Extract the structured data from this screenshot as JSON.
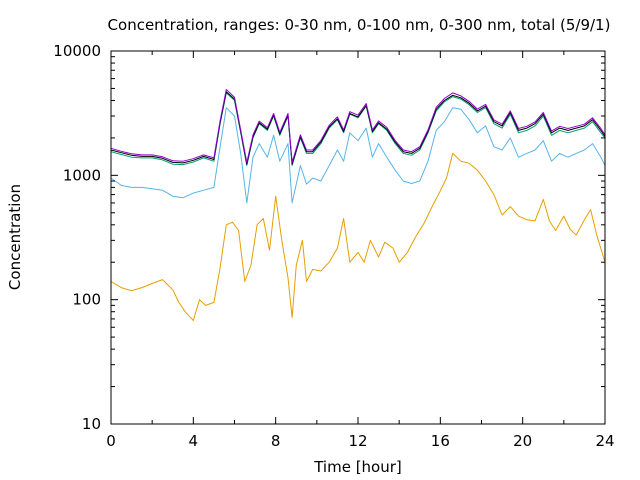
{
  "chart_data": {
    "type": "line",
    "title": "Concentration, ranges: 0-30 nm, 0-100 nm, 0-300 nm, total (5/9/1)",
    "xlabel": "Time [hour]",
    "ylabel": "Concentration",
    "xlim": [
      0,
      24
    ],
    "ylim": [
      10,
      10000
    ],
    "yscale": "log",
    "grid": false,
    "legend": "none",
    "x_ticks": [
      0,
      4,
      8,
      12,
      16,
      20,
      24
    ],
    "x_tick_labels": [
      "0",
      "4",
      "8",
      "12",
      "16",
      "20",
      "24"
    ],
    "y_ticks": [
      10,
      100,
      1000,
      10000
    ],
    "y_tick_labels": [
      "10",
      "100",
      "1000",
      "10000"
    ],
    "series": [
      {
        "color": "#e69f00",
        "points": [
          [
            0,
            140
          ],
          [
            0.5,
            125
          ],
          [
            1,
            118
          ],
          [
            1.5,
            125
          ],
          [
            2,
            135
          ],
          [
            2.5,
            145
          ],
          [
            3,
            120
          ],
          [
            3.3,
            95
          ],
          [
            3.6,
            80
          ],
          [
            4,
            68
          ],
          [
            4.3,
            100
          ],
          [
            4.6,
            90
          ],
          [
            5,
            95
          ],
          [
            5.3,
            180
          ],
          [
            5.6,
            400
          ],
          [
            5.9,
            420
          ],
          [
            6.2,
            360
          ],
          [
            6.5,
            140
          ],
          [
            6.8,
            190
          ],
          [
            7.1,
            400
          ],
          [
            7.4,
            450
          ],
          [
            7.7,
            250
          ],
          [
            8,
            680
          ],
          [
            8.3,
            300
          ],
          [
            8.6,
            150
          ],
          [
            8.8,
            72
          ],
          [
            9,
            190
          ],
          [
            9.3,
            300
          ],
          [
            9.5,
            140
          ],
          [
            9.8,
            175
          ],
          [
            10.2,
            170
          ],
          [
            10.6,
            200
          ],
          [
            11,
            260
          ],
          [
            11.3,
            450
          ],
          [
            11.6,
            200
          ],
          [
            12,
            240
          ],
          [
            12.3,
            200
          ],
          [
            12.6,
            300
          ],
          [
            13,
            220
          ],
          [
            13.3,
            290
          ],
          [
            13.7,
            260
          ],
          [
            14,
            200
          ],
          [
            14.4,
            240
          ],
          [
            14.8,
            320
          ],
          [
            15.2,
            410
          ],
          [
            15.6,
            560
          ],
          [
            16,
            750
          ],
          [
            16.3,
            950
          ],
          [
            16.6,
            1500
          ],
          [
            17,
            1300
          ],
          [
            17.4,
            1250
          ],
          [
            17.8,
            1100
          ],
          [
            18.2,
            900
          ],
          [
            18.6,
            700
          ],
          [
            19,
            480
          ],
          [
            19.4,
            560
          ],
          [
            19.8,
            470
          ],
          [
            20.2,
            440
          ],
          [
            20.6,
            430
          ],
          [
            21,
            640
          ],
          [
            21.3,
            430
          ],
          [
            21.6,
            360
          ],
          [
            22,
            470
          ],
          [
            22.3,
            370
          ],
          [
            22.6,
            330
          ],
          [
            23,
            440
          ],
          [
            23.3,
            530
          ],
          [
            23.6,
            330
          ],
          [
            24,
            200
          ]
        ]
      },
      {
        "color": "#56b4e9",
        "points": [
          [
            0,
            950
          ],
          [
            0.5,
            830
          ],
          [
            1,
            800
          ],
          [
            1.5,
            800
          ],
          [
            2,
            780
          ],
          [
            2.5,
            760
          ],
          [
            3,
            680
          ],
          [
            3.5,
            660
          ],
          [
            4,
            720
          ],
          [
            4.5,
            760
          ],
          [
            5,
            800
          ],
          [
            5.3,
            1700
          ],
          [
            5.6,
            3500
          ],
          [
            6,
            3000
          ],
          [
            6.3,
            1500
          ],
          [
            6.6,
            600
          ],
          [
            6.9,
            1400
          ],
          [
            7.2,
            1800
          ],
          [
            7.6,
            1400
          ],
          [
            7.9,
            2100
          ],
          [
            8.2,
            1300
          ],
          [
            8.6,
            1800
          ],
          [
            8.8,
            600
          ],
          [
            9.2,
            1200
          ],
          [
            9.5,
            850
          ],
          [
            9.8,
            950
          ],
          [
            10.2,
            900
          ],
          [
            10.6,
            1200
          ],
          [
            11,
            1600
          ],
          [
            11.3,
            1300
          ],
          [
            11.6,
            2200
          ],
          [
            12,
            1900
          ],
          [
            12.4,
            2400
          ],
          [
            12.7,
            1400
          ],
          [
            13,
            1800
          ],
          [
            13.4,
            1400
          ],
          [
            13.8,
            1100
          ],
          [
            14.2,
            900
          ],
          [
            14.6,
            860
          ],
          [
            15,
            900
          ],
          [
            15.4,
            1300
          ],
          [
            15.8,
            2300
          ],
          [
            16.2,
            2700
          ],
          [
            16.6,
            3500
          ],
          [
            17,
            3400
          ],
          [
            17.4,
            2800
          ],
          [
            17.8,
            2200
          ],
          [
            18.2,
            2500
          ],
          [
            18.6,
            1700
          ],
          [
            19,
            1600
          ],
          [
            19.4,
            2000
          ],
          [
            19.8,
            1400
          ],
          [
            20.2,
            1500
          ],
          [
            20.6,
            1600
          ],
          [
            21,
            1900
          ],
          [
            21.4,
            1300
          ],
          [
            21.8,
            1500
          ],
          [
            22.2,
            1400
          ],
          [
            22.6,
            1500
          ],
          [
            23,
            1600
          ],
          [
            23.4,
            1800
          ],
          [
            23.8,
            1400
          ],
          [
            24,
            1200
          ]
        ]
      },
      {
        "color": "#009e73",
        "points": [
          [
            0,
            1550
          ],
          [
            0.5,
            1470
          ],
          [
            1,
            1400
          ],
          [
            1.5,
            1380
          ],
          [
            2,
            1380
          ],
          [
            2.5,
            1330
          ],
          [
            3,
            1230
          ],
          [
            3.5,
            1220
          ],
          [
            4,
            1280
          ],
          [
            4.5,
            1380
          ],
          [
            5,
            1300
          ],
          [
            5.3,
            2600
          ],
          [
            5.6,
            4600
          ],
          [
            6,
            4000
          ],
          [
            6.3,
            2200
          ],
          [
            6.6,
            1200
          ],
          [
            6.9,
            2000
          ],
          [
            7.2,
            2600
          ],
          [
            7.6,
            2300
          ],
          [
            7.9,
            3000
          ],
          [
            8.2,
            2100
          ],
          [
            8.6,
            3000
          ],
          [
            8.8,
            1200
          ],
          [
            9.2,
            2000
          ],
          [
            9.5,
            1500
          ],
          [
            9.8,
            1500
          ],
          [
            10.2,
            1800
          ],
          [
            10.6,
            2400
          ],
          [
            11,
            2800
          ],
          [
            11.3,
            2200
          ],
          [
            11.6,
            3100
          ],
          [
            12,
            2900
          ],
          [
            12.4,
            3600
          ],
          [
            12.7,
            2200
          ],
          [
            13,
            2600
          ],
          [
            13.4,
            2300
          ],
          [
            13.8,
            1800
          ],
          [
            14.2,
            1500
          ],
          [
            14.6,
            1450
          ],
          [
            15,
            1600
          ],
          [
            15.4,
            2200
          ],
          [
            15.8,
            3300
          ],
          [
            16.2,
            3900
          ],
          [
            16.6,
            4300
          ],
          [
            17,
            4100
          ],
          [
            17.4,
            3700
          ],
          [
            17.8,
            3200
          ],
          [
            18.2,
            3500
          ],
          [
            18.6,
            2600
          ],
          [
            19,
            2400
          ],
          [
            19.4,
            3100
          ],
          [
            19.8,
            2200
          ],
          [
            20.2,
            2300
          ],
          [
            20.6,
            2500
          ],
          [
            21,
            3000
          ],
          [
            21.4,
            2100
          ],
          [
            21.8,
            2300
          ],
          [
            22.2,
            2200
          ],
          [
            22.6,
            2300
          ],
          [
            23,
            2400
          ],
          [
            23.4,
            2700
          ],
          [
            23.8,
            2200
          ],
          [
            24,
            2000
          ]
        ]
      },
      {
        "color": "#000000",
        "points": [
          [
            0,
            1600
          ],
          [
            0.5,
            1520
          ],
          [
            1,
            1450
          ],
          [
            1.5,
            1420
          ],
          [
            2,
            1420
          ],
          [
            2.5,
            1370
          ],
          [
            3,
            1270
          ],
          [
            3.5,
            1260
          ],
          [
            4,
            1320
          ],
          [
            4.5,
            1420
          ],
          [
            5,
            1340
          ],
          [
            5.3,
            2650
          ],
          [
            5.6,
            4700
          ],
          [
            6,
            4100
          ],
          [
            6.3,
            2250
          ],
          [
            6.6,
            1230
          ],
          [
            6.9,
            2050
          ],
          [
            7.2,
            2650
          ],
          [
            7.6,
            2350
          ],
          [
            7.9,
            3050
          ],
          [
            8.2,
            2150
          ],
          [
            8.6,
            3050
          ],
          [
            8.8,
            1230
          ],
          [
            9.2,
            2050
          ],
          [
            9.5,
            1550
          ],
          [
            9.8,
            1550
          ],
          [
            10.2,
            1850
          ],
          [
            10.6,
            2450
          ],
          [
            11,
            2850
          ],
          [
            11.3,
            2250
          ],
          [
            11.6,
            3150
          ],
          [
            12,
            2950
          ],
          [
            12.4,
            3650
          ],
          [
            12.7,
            2250
          ],
          [
            13,
            2650
          ],
          [
            13.4,
            2350
          ],
          [
            13.8,
            1850
          ],
          [
            14.2,
            1550
          ],
          [
            14.6,
            1500
          ],
          [
            15,
            1650
          ],
          [
            15.4,
            2250
          ],
          [
            15.8,
            3400
          ],
          [
            16.2,
            4000
          ],
          [
            16.6,
            4400
          ],
          [
            17,
            4200
          ],
          [
            17.4,
            3800
          ],
          [
            17.8,
            3300
          ],
          [
            18.2,
            3600
          ],
          [
            18.6,
            2700
          ],
          [
            19,
            2500
          ],
          [
            19.4,
            3200
          ],
          [
            19.8,
            2300
          ],
          [
            20.2,
            2400
          ],
          [
            20.6,
            2600
          ],
          [
            21,
            3100
          ],
          [
            21.4,
            2200
          ],
          [
            21.8,
            2400
          ],
          [
            22.2,
            2300
          ],
          [
            22.6,
            2400
          ],
          [
            23,
            2500
          ],
          [
            23.4,
            2800
          ],
          [
            23.8,
            2300
          ],
          [
            24,
            2050
          ]
        ]
      },
      {
        "color": "#9400d3",
        "points": [
          [
            0,
            1650
          ],
          [
            0.5,
            1560
          ],
          [
            1,
            1490
          ],
          [
            1.5,
            1460
          ],
          [
            2,
            1460
          ],
          [
            2.5,
            1410
          ],
          [
            3,
            1310
          ],
          [
            3.5,
            1300
          ],
          [
            4,
            1360
          ],
          [
            4.5,
            1460
          ],
          [
            5,
            1380
          ],
          [
            5.3,
            2750
          ],
          [
            5.6,
            4900
          ],
          [
            6,
            4250
          ],
          [
            6.3,
            2320
          ],
          [
            6.6,
            1270
          ],
          [
            6.9,
            2120
          ],
          [
            7.2,
            2730
          ],
          [
            7.6,
            2420
          ],
          [
            7.9,
            3150
          ],
          [
            8.2,
            2220
          ],
          [
            8.6,
            3150
          ],
          [
            8.8,
            1270
          ],
          [
            9.2,
            2120
          ],
          [
            9.5,
            1600
          ],
          [
            9.8,
            1600
          ],
          [
            10.2,
            1910
          ],
          [
            10.6,
            2530
          ],
          [
            11,
            2950
          ],
          [
            11.3,
            2320
          ],
          [
            11.6,
            3250
          ],
          [
            12,
            3050
          ],
          [
            12.4,
            3780
          ],
          [
            12.7,
            2320
          ],
          [
            13,
            2740
          ],
          [
            13.4,
            2430
          ],
          [
            13.8,
            1910
          ],
          [
            14.2,
            1600
          ],
          [
            14.6,
            1550
          ],
          [
            15,
            1700
          ],
          [
            15.4,
            2320
          ],
          [
            15.8,
            3520
          ],
          [
            16.2,
            4150
          ],
          [
            16.6,
            4600
          ],
          [
            17,
            4350
          ],
          [
            17.4,
            3930
          ],
          [
            17.8,
            3410
          ],
          [
            18.2,
            3720
          ],
          [
            18.6,
            2790
          ],
          [
            19,
            2580
          ],
          [
            19.4,
            3300
          ],
          [
            19.8,
            2380
          ],
          [
            20.2,
            2480
          ],
          [
            20.6,
            2690
          ],
          [
            21,
            3200
          ],
          [
            21.4,
            2270
          ],
          [
            21.8,
            2480
          ],
          [
            22.2,
            2380
          ],
          [
            22.6,
            2480
          ],
          [
            23,
            2580
          ],
          [
            23.4,
            2900
          ],
          [
            23.8,
            2380
          ],
          [
            24,
            2120
          ]
        ]
      }
    ]
  }
}
